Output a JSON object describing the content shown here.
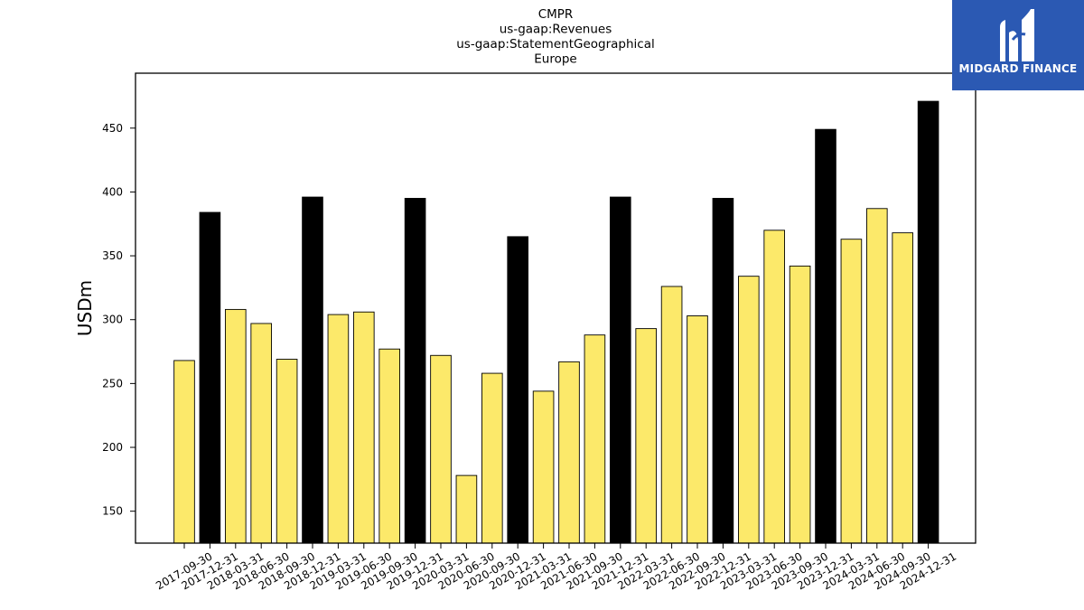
{
  "chart_data": {
    "type": "bar",
    "title_lines": [
      "CMPR",
      "us-gaap:Revenues",
      "us-gaap:StatementGeographical",
      "Europe"
    ],
    "ylabel": "USDm",
    "xlabel": "",
    "ylim": [
      125,
      493
    ],
    "yticks": [
      150,
      200,
      250,
      300,
      350,
      400,
      450
    ],
    "grid": false,
    "categories": [
      "2017-09-30",
      "2017-12-31",
      "2018-03-31",
      "2018-06-30",
      "2018-09-30",
      "2018-12-31",
      "2019-03-31",
      "2019-06-30",
      "2019-09-30",
      "2019-12-31",
      "2020-03-31",
      "2020-06-30",
      "2020-09-30",
      "2020-12-31",
      "2021-03-31",
      "2021-06-30",
      "2021-09-30",
      "2021-12-31",
      "2022-03-31",
      "2022-06-30",
      "2022-09-30",
      "2022-12-31",
      "2023-03-31",
      "2023-06-30",
      "2023-09-30",
      "2023-12-31",
      "2024-03-31",
      "2024-06-30",
      "2024-09-30",
      "2024-12-31"
    ],
    "values": [
      268,
      384,
      308,
      297,
      269,
      396,
      304,
      306,
      277,
      395,
      272,
      178,
      258,
      365,
      244,
      267,
      288,
      396,
      293,
      326,
      303,
      395,
      334,
      370,
      342,
      449,
      363,
      387,
      368,
      471
    ],
    "colors": {
      "quarter": "#fce96a",
      "year_end": "#000000",
      "edge": "#000000"
    }
  },
  "logo": {
    "text": "MIDGARD FINANCE",
    "background": "#2b59b3"
  }
}
